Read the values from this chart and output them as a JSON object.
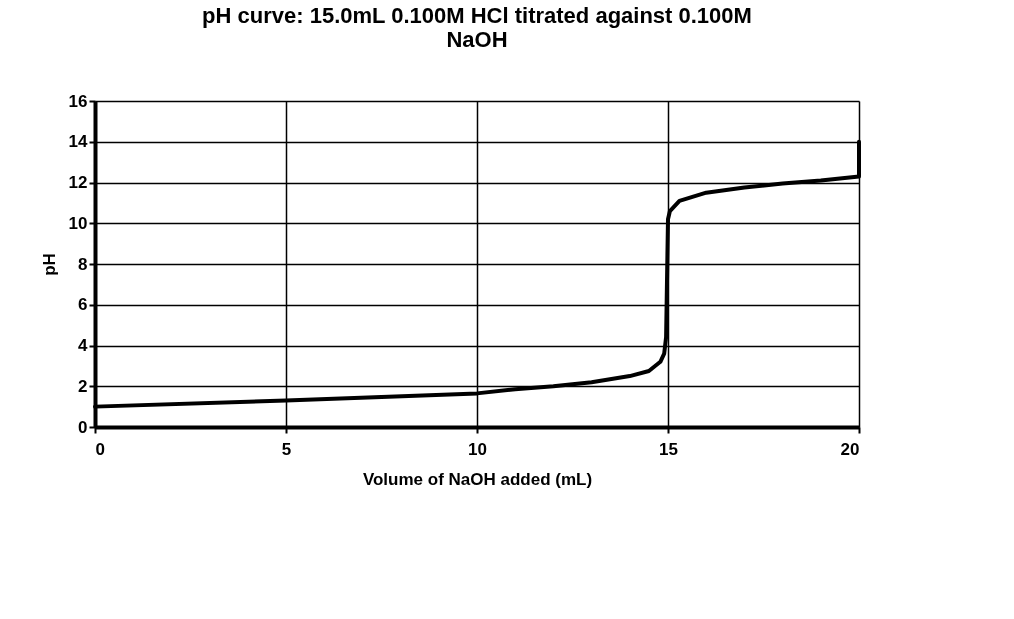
{
  "chart_data": {
    "type": "line",
    "title": "pH curve: 15.0mL 0.100M HCl titrated against 0.100M NaOH",
    "xlabel": "Volume of NaOH added (mL)",
    "ylabel": "pH",
    "x": [
      0,
      5,
      10,
      11,
      12,
      13,
      14,
      14.5,
      14.8,
      14.9,
      14.95,
      15,
      15.05,
      15.3,
      16,
      17,
      18,
      19,
      20,
      20
    ],
    "series": [
      {
        "color": "#000000",
        "values": [
          1.0,
          1.3,
          1.65,
          1.85,
          2.0,
          2.2,
          2.5,
          2.75,
          3.2,
          3.6,
          4.4,
          10.2,
          10.6,
          11.1,
          11.5,
          11.75,
          11.95,
          12.1,
          12.3,
          14
        ]
      }
    ],
    "xlim": [
      0,
      20
    ],
    "xticks": [
      0,
      5,
      10,
      15,
      20
    ],
    "ylim": [
      0,
      16
    ],
    "yticks": [
      0,
      2,
      4,
      6,
      8,
      10,
      12,
      14,
      16
    ],
    "grid": true,
    "legend": false,
    "marker": "none",
    "line_style": "solid"
  }
}
